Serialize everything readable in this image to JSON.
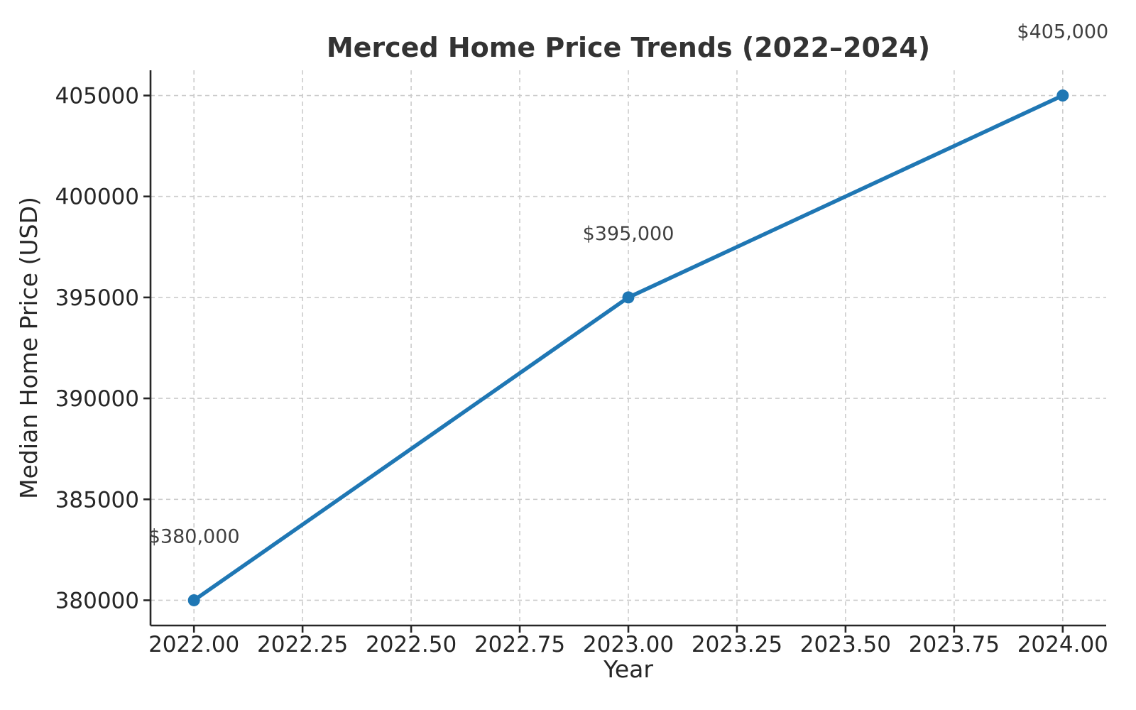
{
  "chart_data": {
    "type": "line",
    "title": "Merced Home Price Trends (2022–2024)",
    "xlabel": "Year",
    "ylabel": "Median Home Price (USD)",
    "series": [
      {
        "name": "Median Home Price",
        "x": [
          2022,
          2023,
          2024
        ],
        "y": [
          380000,
          395000,
          405000
        ]
      }
    ],
    "point_annotations": [
      "$380,000",
      "$395,000",
      "$405,000"
    ],
    "x_ticks": [
      2022.0,
      2022.25,
      2022.5,
      2022.75,
      2023.0,
      2023.25,
      2023.5,
      2023.75,
      2024.0
    ],
    "x_tick_labels": [
      "2022.00",
      "2022.25",
      "2022.50",
      "2022.75",
      "2023.00",
      "2023.25",
      "2023.50",
      "2023.75",
      "2024.00"
    ],
    "y_ticks": [
      380000,
      385000,
      390000,
      395000,
      400000,
      405000
    ],
    "y_tick_labels": [
      "380000",
      "385000",
      "390000",
      "395000",
      "400000",
      "405000"
    ],
    "xlim": [
      2021.9,
      2024.1
    ],
    "ylim": [
      378750,
      406250
    ],
    "grid": true,
    "grid_style": "dashed",
    "legend": "none",
    "colors": {
      "line": "#1f77b4",
      "marker": "#1f77b4",
      "grid": "#cccccc",
      "spine": "#262626",
      "tick": "#262626",
      "text": "#262626",
      "title": "#333333",
      "annotation": "#404040",
      "background": "#ffffff"
    }
  }
}
